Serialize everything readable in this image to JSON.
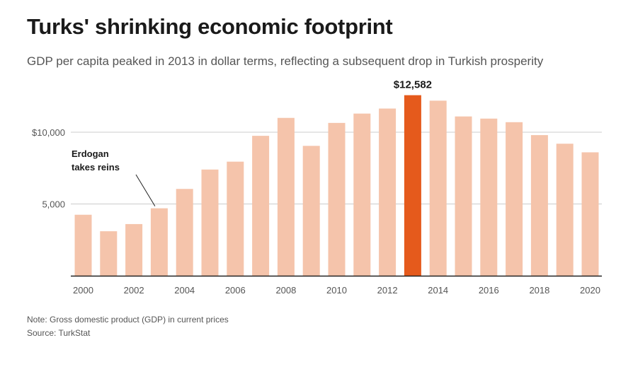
{
  "title": "Turks' shrinking economic footprint",
  "subtitle": "GDP per capita peaked in 2013 in dollar terms, reflecting a subsequent drop in Turkish prosperity",
  "note": "Note: Gross domestic product (GDP) in current prices",
  "source": "Source: TurkStat",
  "chart_data": {
    "type": "bar",
    "categories": [
      2000,
      2001,
      2002,
      2003,
      2004,
      2005,
      2006,
      2007,
      2008,
      2009,
      2010,
      2011,
      2012,
      2013,
      2014,
      2015,
      2016,
      2017,
      2018,
      2019,
      2020
    ],
    "values": [
      4250,
      3100,
      3600,
      4700,
      6050,
      7400,
      7950,
      9750,
      11000,
      9050,
      10650,
      11300,
      11650,
      12582,
      12200,
      11100,
      10950,
      10700,
      9800,
      9200,
      8600
    ],
    "x_tick_labels": [
      "2000",
      "2002",
      "2004",
      "2006",
      "2008",
      "2010",
      "2012",
      "2014",
      "2016",
      "2018",
      "2020"
    ],
    "y_ticks": [
      5000,
      10000
    ],
    "y_tick_labels": [
      "5,000",
      "$10,000"
    ],
    "ylim": [
      0,
      13500
    ],
    "highlight_year": 2013,
    "highlight_label": "$12,582",
    "annotation": {
      "year": 2003,
      "lines": [
        "Erdogan",
        "takes reins"
      ]
    },
    "colors": {
      "bar": "#f5c4ab",
      "highlight": "#e55a1c",
      "grid": "#cccccc",
      "axis": "#222222"
    },
    "xlabel": "",
    "ylabel": ""
  }
}
